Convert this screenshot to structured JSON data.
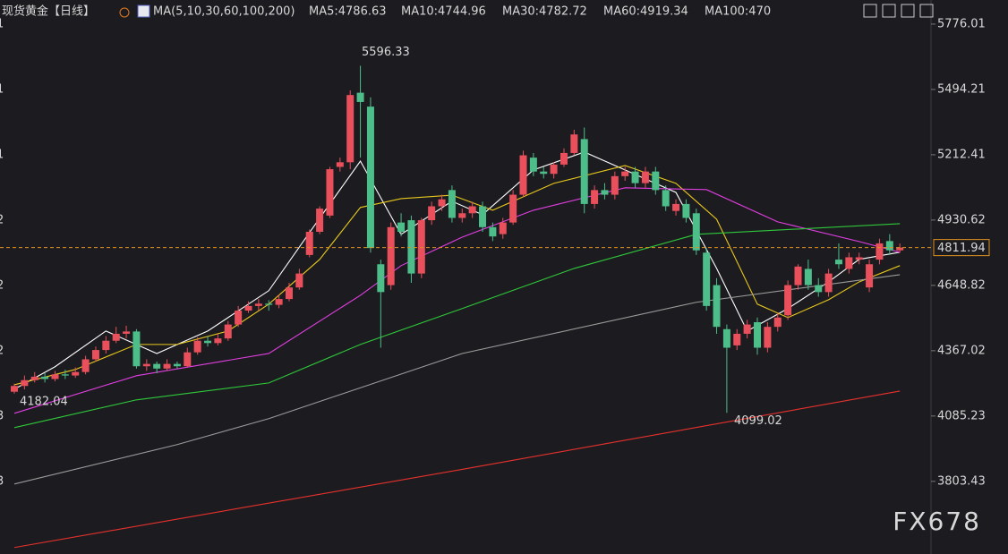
{
  "chart_data": {
    "type": "candlestick",
    "title": "现货黄金",
    "period": "【日线】",
    "indicator": "MA(5,10,30,60,100,200)",
    "indicator_legend": [
      {
        "text": "MA5:4786.63",
        "color": "#ffffff"
      },
      {
        "text": "MA10:4744.96",
        "color": "#e8c81c"
      },
      {
        "text": "MA30:4782.72",
        "color": "#e23ee2"
      },
      {
        "text": "MA60:4919.34",
        "color": "#2fc83a"
      },
      {
        "text": "MA100:470",
        "color": "#9a9a9a"
      }
    ],
    "up_color": "#e9505b",
    "down_color": "#4dbd8a",
    "open": [
      4190,
      4215,
      4240,
      4255,
      4245,
      4265,
      4260,
      4275,
      4330,
      4370,
      4410,
      4440,
      4450,
      4300,
      4310,
      4290,
      4310,
      4300,
      4360,
      4410,
      4400,
      4420,
      4480,
      4540,
      4560,
      4570,
      4565,
      4590,
      4640,
      4780,
      4880,
      4950,
      5160,
      5180,
      5480,
      5420,
      4740,
      4650,
      4920,
      4930,
      4700,
      4930,
      4990,
      5060,
      4940,
      4960,
      4990,
      4900,
      4870,
      4920,
      5040,
      5200,
      5140,
      5130,
      5170,
      5220,
      5280,
      5000,
      5060,
      5040,
      5120,
      5140,
      5090,
      5140,
      5060,
      4970,
      5000,
      4960,
      4790,
      4650,
      4460,
      4390,
      4440,
      4490,
      4380,
      4470,
      4520,
      4650,
      4720,
      4650,
      4620,
      4760,
      4720,
      4760,
      4640,
      4760,
      4840,
      4800
    ],
    "high": [
      4225,
      4260,
      4275,
      4270,
      4280,
      4285,
      4295,
      4345,
      4385,
      4430,
      4470,
      4475,
      4460,
      4330,
      4320,
      4330,
      4320,
      4380,
      4425,
      4430,
      4440,
      4495,
      4560,
      4580,
      4590,
      4585,
      4610,
      4660,
      4720,
      4890,
      4990,
      5160,
      5200,
      5490,
      5596.33,
      5460,
      4760,
      4920,
      4960,
      4950,
      4940,
      5010,
      5040,
      5080,
      4980,
      5010,
      5010,
      4920,
      4940,
      5060,
      5230,
      5220,
      5160,
      5180,
      5240,
      5320,
      5330,
      5080,
      5090,
      5140,
      5160,
      5160,
      5160,
      5160,
      5080,
      5020,
      5020,
      4980,
      4810,
      4680,
      4480,
      4460,
      4500,
      4510,
      4490,
      4530,
      4670,
      4740,
      4760,
      4680,
      4720,
      4830,
      4790,
      4790,
      4760,
      4850,
      4870,
      4830
    ],
    "low": [
      4182,
      4200,
      4230,
      4230,
      4235,
      4245,
      4250,
      4265,
      4320,
      4355,
      4400,
      4420,
      4290,
      4280,
      4270,
      4280,
      4290,
      4295,
      4350,
      4385,
      4390,
      4410,
      4470,
      4530,
      4540,
      4540,
      4550,
      4580,
      4630,
      4770,
      4870,
      4940,
      5140,
      5150,
      5200,
      4790,
      4380,
      4630,
      4860,
      4660,
      4680,
      4910,
      4970,
      4920,
      4920,
      4940,
      4880,
      4840,
      4850,
      4910,
      5030,
      5120,
      5110,
      5110,
      5160,
      5210,
      4960,
      4980,
      5020,
      5020,
      5100,
      5070,
      5070,
      5040,
      4970,
      4950,
      4920,
      4780,
      4540,
      4440,
      4099.02,
      4370,
      4420,
      4350,
      4360,
      4450,
      4500,
      4630,
      4630,
      4600,
      4600,
      4720,
      4700,
      4740,
      4620,
      4740,
      4780,
      4790
    ],
    "close": [
      4215,
      4240,
      4255,
      4245,
      4265,
      4260,
      4275,
      4330,
      4370,
      4410,
      4440,
      4450,
      4300,
      4310,
      4290,
      4310,
      4300,
      4360,
      4410,
      4400,
      4420,
      4480,
      4540,
      4560,
      4570,
      4565,
      4590,
      4640,
      4700,
      4880,
      4980,
      5150,
      5180,
      5470,
      5440,
      4810,
      4620,
      4900,
      4880,
      4700,
      4930,
      4990,
      5020,
      4940,
      4960,
      4990,
      4900,
      4860,
      4920,
      5040,
      5210,
      5140,
      5130,
      5170,
      5220,
      5300,
      5000,
      5060,
      5040,
      5120,
      5140,
      5090,
      5140,
      5060,
      4990,
      5000,
      4940,
      4800,
      4560,
      4470,
      4380,
      4440,
      4480,
      4380,
      4470,
      4510,
      4650,
      4730,
      4650,
      4620,
      4700,
      4740,
      4770,
      4770,
      4740,
      4830,
      4800,
      4812
    ],
    "series": [
      {
        "color": "#ffffff",
        "x": [
          0,
          4,
          9,
          14,
          19,
          25,
          29,
          34,
          38,
          43,
          46,
          51,
          56,
          60,
          65,
          69,
          72,
          76,
          80,
          83,
          87
        ],
        "values": [
          4201,
          4298,
          4452,
          4355,
          4452,
          4626,
          4877,
          5185,
          4869,
          5012,
          4954,
          5147,
          5224,
          5147,
          5050,
          4722,
          4452,
          4549,
          4664,
          4761,
          4792
        ]
      },
      {
        "color": "#e8c81c",
        "x": [
          0,
          6,
          12,
          16,
          21,
          25,
          30,
          34,
          38,
          43,
          47,
          53,
          60,
          65,
          69,
          73,
          76,
          80,
          83,
          87
        ],
        "values": [
          4220,
          4286,
          4394,
          4394,
          4452,
          4568,
          4761,
          4985,
          5023,
          5038,
          4973,
          5089,
          5166,
          5089,
          4934,
          4568,
          4510,
          4587,
          4664,
          4734
        ]
      },
      {
        "color": "#e23ee2",
        "x": [
          0,
          12,
          25,
          34,
          38,
          44,
          51,
          60,
          68,
          75,
          83,
          87
        ],
        "values": [
          4097,
          4259,
          4355,
          4606,
          4734,
          4857,
          4973,
          5070,
          5062,
          4923,
          4838,
          4792
        ]
      },
      {
        "color": "#2fc83a",
        "x": [
          0,
          12,
          25,
          34,
          44,
          55,
          67,
          87
        ],
        "values": [
          4035,
          4155,
          4228,
          4394,
          4549,
          4722,
          4869,
          4915
        ]
      },
      {
        "color": "#9a9a9a",
        "x": [
          0,
          16,
          25,
          44,
          67,
          87
        ],
        "values": [
          3792,
          3962,
          4074,
          4355,
          4576,
          4695
        ]
      },
      {
        "color": "#e8312c",
        "x": [
          0,
          44,
          87
        ],
        "values": [
          3518,
          3855,
          4193
        ]
      }
    ],
    "last_price": 4811.94,
    "annotations": [
      {
        "text": "5596.33",
        "color": "#e9505b"
      },
      {
        "text": "4182.04",
        "color": "#4dbd8a"
      },
      {
        "text": "4099.02",
        "color": "#4dbd8a"
      }
    ],
    "left_axis_clipped_labels": [
      "1",
      "1",
      "1",
      "2",
      "2",
      "2",
      "3",
      "3"
    ],
    "watermark": "FX678",
    "ylim": [
      3490,
      5880
    ],
    "yticks": [
      5776.01,
      5494.21,
      5212.41,
      4930.62,
      4648.82,
      4367.02,
      4085.23,
      3803.43
    ]
  }
}
